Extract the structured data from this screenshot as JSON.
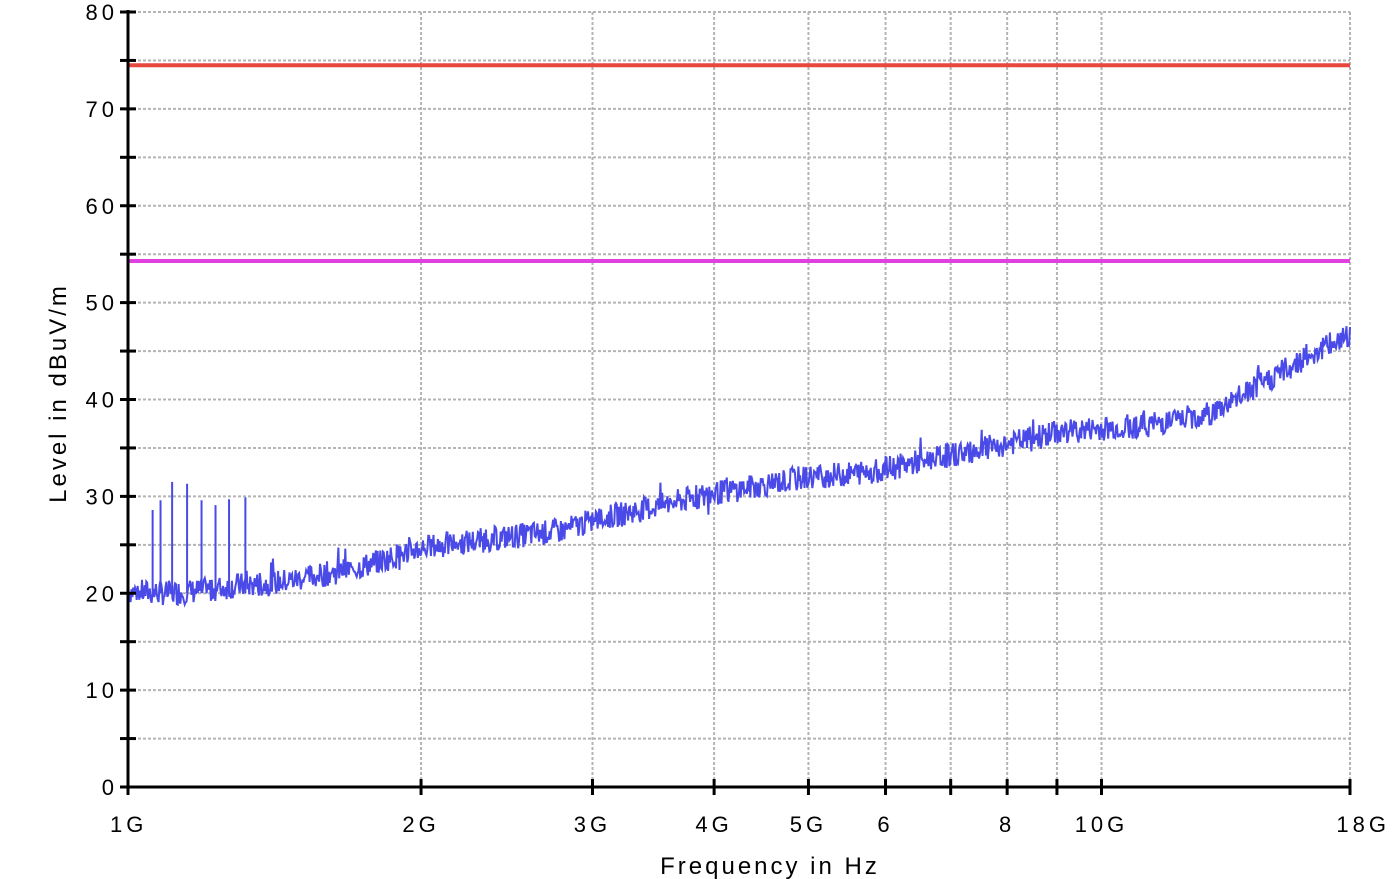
{
  "chart_data": {
    "type": "line",
    "title": "",
    "xlabel": "Frequency in Hz",
    "ylabel": "Level in dBuV/m",
    "x_scale": "log",
    "xlim_hz": [
      1000000000,
      18000000000
    ],
    "ylim": [
      0,
      80
    ],
    "grid": true,
    "y_ticks": [
      0,
      10,
      20,
      30,
      40,
      50,
      60,
      70,
      80
    ],
    "y_tick_labels": [
      "0",
      "10",
      "20",
      "30",
      "40",
      "50",
      "60",
      "70",
      "80"
    ],
    "x_ticks_hz": [
      1000000000,
      2000000000,
      3000000000,
      4000000000,
      5000000000,
      6000000000,
      8000000000,
      10000000000,
      18000000000
    ],
    "x_tick_labels": [
      "1G",
      "2G",
      "3G",
      "4G",
      "5G",
      "6",
      "8",
      "10G",
      "18G"
    ],
    "x_minor_grid_hz": [
      7000000000,
      9000000000
    ],
    "limit_lines": [
      {
        "value": 74.5,
        "color": "#e8473d"
      },
      {
        "value": 54.3,
        "color": "#e040e0"
      }
    ],
    "series": [
      {
        "color": "#4a4ae8",
        "x_hz": [
          1000000000,
          1100000000,
          1200000000,
          1300000000,
          1400000000,
          1500000000,
          1600000000,
          1700000000,
          1800000000,
          2000000000,
          2200000000,
          2500000000,
          2800000000,
          3000000000,
          3500000000,
          4000000000,
          4500000000,
          5000000000,
          5500000000,
          6000000000,
          7000000000,
          8000000000,
          9000000000,
          10000000000,
          11000000000,
          12000000000,
          13000000000,
          14000000000,
          15000000000,
          16000000000,
          17000000000,
          18000000000
        ],
        "y": [
          20.2,
          20.0,
          20.3,
          20.8,
          21.0,
          21.5,
          22.0,
          22.5,
          23.2,
          24.7,
          25.2,
          25.9,
          26.5,
          27.5,
          29.0,
          30.3,
          31.2,
          32.0,
          32.3,
          32.8,
          34.3,
          35.4,
          36.6,
          37.0,
          37.3,
          37.9,
          38.6,
          40.5,
          42.3,
          44.0,
          45.5,
          46.5
        ],
        "spikes": [
          {
            "x_hz": 1060000000,
            "y": 28.6
          },
          {
            "x_hz": 1080000000,
            "y": 29.6
          },
          {
            "x_hz": 1110000000,
            "y": 31.5
          },
          {
            "x_hz": 1150000000,
            "y": 31.3
          },
          {
            "x_hz": 1190000000,
            "y": 29.6
          },
          {
            "x_hz": 1230000000,
            "y": 29.1
          },
          {
            "x_hz": 1270000000,
            "y": 29.7
          },
          {
            "x_hz": 1320000000,
            "y": 29.9
          }
        ]
      }
    ]
  }
}
